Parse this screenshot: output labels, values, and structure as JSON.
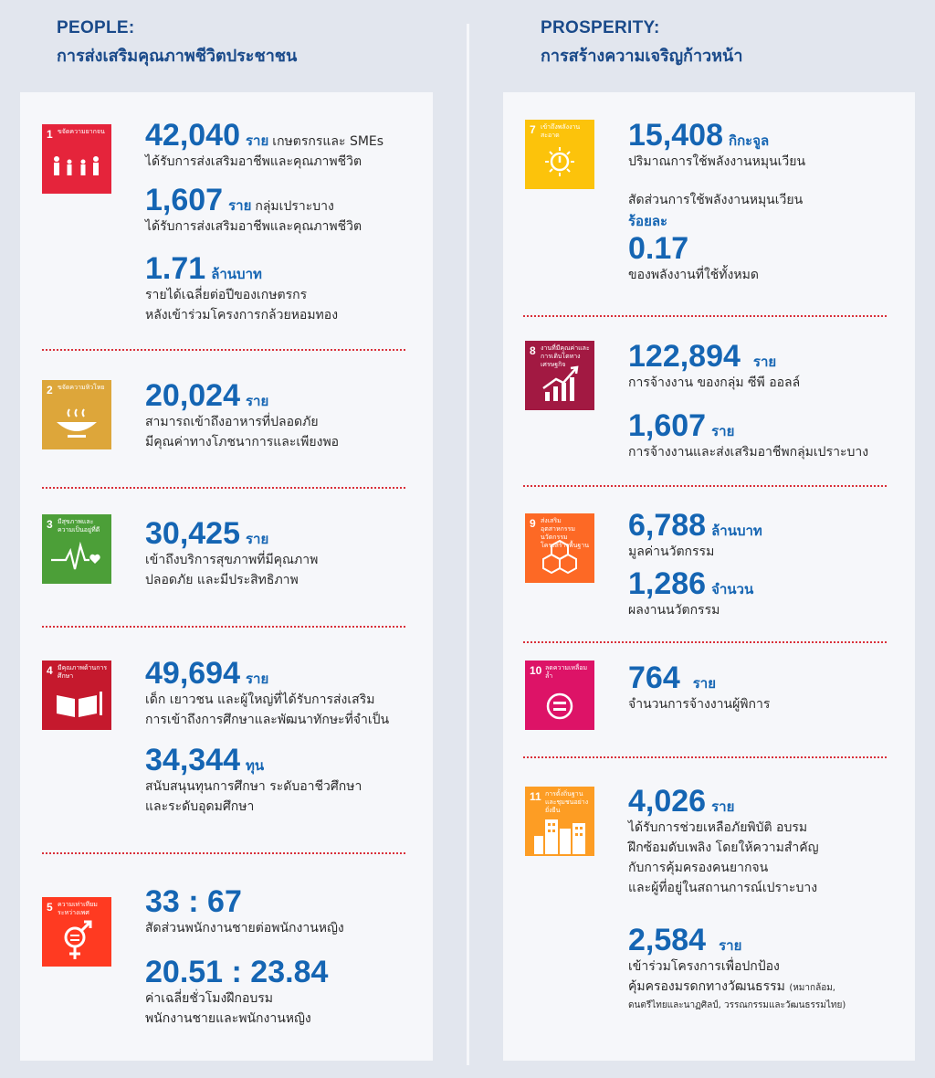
{
  "people": {
    "title_en": "PEOPLE:",
    "title_th": "การส่งเสริมคุณภาพชีวิตประชาชน",
    "sdg1": {
      "num": "1",
      "label": "ขจัดความยากจน",
      "color": "#e5243b",
      "icon": "family-icon",
      "stat1": {
        "value": "42,040",
        "unit": "ราย",
        "inline": "เกษตรกรและ SMEs",
        "desc": "ได้รับการส่งเสริมอาชีพและคุณภาพชีวิต"
      },
      "stat2": {
        "value": "1,607",
        "unit": "ราย",
        "inline": "กลุ่มเปราะบาง",
        "desc": "ได้รับการส่งเสริมอาชีพและคุณภาพชีวิต"
      },
      "stat3": {
        "value": "1.71",
        "unit": "ล้านบาท",
        "desc1": "รายได้เฉลี่ยต่อปีของเกษตรกร",
        "desc2": "หลังเข้าร่วมโครงการกล้วยหอมทอง"
      }
    },
    "sdg2": {
      "num": "2",
      "label": "ขจัดความหิวโหย",
      "color": "#dda63a",
      "icon": "bowl-icon",
      "stat1": {
        "value": "20,024",
        "unit": "ราย",
        "desc1": "สามารถเข้าถึงอาหารที่ปลอดภัย",
        "desc2": "มีคุณค่าทางโภชนาการและเพียงพอ"
      }
    },
    "sdg3": {
      "num": "3",
      "label": "มีสุขภาพและความเป็นอยู่ที่ดี",
      "color": "#4c9f38",
      "icon": "heartbeat-icon",
      "stat1": {
        "value": "30,425",
        "unit": "ราย",
        "desc1": "เข้าถึงบริการสุขภาพที่มีคุณภาพ",
        "desc2": "ปลอดภัย และมีประสิทธิภาพ"
      }
    },
    "sdg4": {
      "num": "4",
      "label": "มีคุณภาพด้านการศึกษา",
      "color": "#c5192d",
      "icon": "book-icon",
      "stat1": {
        "value": "49,694",
        "unit": "ราย",
        "desc1": "เด็ก เยาวชน และผู้ใหญ่ที่ได้รับการส่งเสริม",
        "desc2": "การเข้าถึงการศึกษาและพัฒนาทักษะที่จำเป็น"
      },
      "stat2": {
        "value": "34,344",
        "unit": "ทุน",
        "desc1": "สนับสนุนทุนการศึกษา ระดับอาชีวศึกษา",
        "desc2": "และระดับอุดมศึกษา"
      }
    },
    "sdg5": {
      "num": "5",
      "label": "ความเท่าเทียมระหว่างเพศ",
      "color": "#ff3a21",
      "icon": "gender-equality-icon",
      "stat1": {
        "value": "33 : 67",
        "desc": "สัดส่วนพนักงานชายต่อพนักงานหญิง"
      },
      "stat2": {
        "value": "20.51 : 23.84",
        "desc1": "ค่าเฉลี่ยชั่วโมงฝึกอบรม",
        "desc2": "พนักงานชายและพนักงานหญิง"
      }
    }
  },
  "prosperity": {
    "title_en": "PROSPERITY:",
    "title_th": "การสร้างความเจริญก้าวหน้า",
    "sdg7": {
      "num": "7",
      "label": "เข้าถึงพลังงานสะอาด",
      "color": "#fcc30b",
      "icon": "sun-power-icon",
      "stat1": {
        "value": "15,408",
        "unit": "กิกะจูล",
        "desc": "ปริมาณการใช้พลังงานหมุนเวียน"
      },
      "stat2": {
        "pre": "สัดส่วนการใช้พลังงานหมุนเวียน",
        "unit": "ร้อยละ",
        "value": "0.17",
        "desc": "ของพลังงานที่ใช้ทั้งหมด"
      }
    },
    "sdg8": {
      "num": "8",
      "label": "งานที่มีคุณค่าและการเติบโตทางเศรษฐกิจ",
      "color": "#a21942",
      "icon": "growth-chart-icon",
      "stat1": {
        "value": "122,894",
        "unit": "ราย",
        "desc": "การจ้างงาน ของกลุ่ม ซีพี ออลล์"
      },
      "stat2": {
        "value": "1,607",
        "unit": "ราย",
        "desc": "การจ้างงานและส่งเสริมอาชีพกลุ่มเปราะบาง"
      }
    },
    "sdg9": {
      "num": "9",
      "label": "ส่งเสริมอุตสาหกรรม นวัตกรรม โครงสร้างพื้นฐาน",
      "color": "#fd6925",
      "icon": "cubes-icon",
      "stat1": {
        "value": "6,788",
        "unit": "ล้านบาท",
        "desc": "มูลค่านวัตกรรม"
      },
      "stat2": {
        "value": "1,286",
        "unit": "จำนวน",
        "desc": "ผลงานนวัตกรรม"
      }
    },
    "sdg10": {
      "num": "10",
      "label": "ลดความเหลื่อมล้ำ",
      "color": "#dd1367",
      "icon": "equality-icon",
      "stat1": {
        "value": "764",
        "unit": "ราย",
        "desc": "จำนวนการจ้างงานผู้พิการ"
      }
    },
    "sdg11": {
      "num": "11",
      "label": "การตั้งถิ่นฐานและชุมชนอย่างยั่งยืน",
      "color": "#fd9d24",
      "icon": "city-buildings-icon",
      "stat1": {
        "value": "4,026",
        "unit": "ราย",
        "desc1": "ได้รับการช่วยเหลือภัยพิบัติ อบรม",
        "desc2": "ฝึกซ้อมดับเพลิง โดยให้ความสำคัญ",
        "desc3": "กับการคุ้มครองคนยากจน",
        "desc4": "และผู้ที่อยู่ในสถานการณ์เปราะบาง"
      },
      "stat2": {
        "value": "2,584",
        "unit": "ราย",
        "desc1": "เข้าร่วมโครงการเพื่อปกป้อง",
        "desc2": "คุ้มครองมรดกทางวัฒนธรรม",
        "note1": "(หมากล้อม,",
        "note2": "ดนตรีไทยและนาฏศิลป์, วรรณกรรมและวัฒนธรรมไทย)"
      }
    }
  }
}
